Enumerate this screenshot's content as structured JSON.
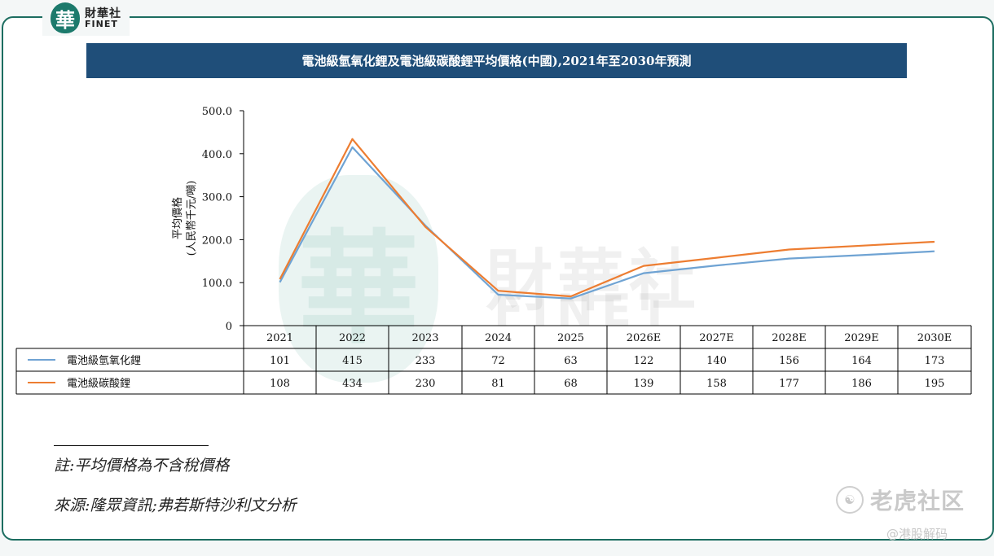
{
  "brand": {
    "seal_char": "華",
    "name_cn": "財華社",
    "name_en": "FINET"
  },
  "title": "電池級氫氧化鋰及電池級碳酸鋰平均價格(中國),2021年至2030年預測",
  "watermark": {
    "center_cn": "財華社",
    "center_en": "FINET",
    "seal_char": "華",
    "brand_right": "老虎社区",
    "handle": "@港股解码"
  },
  "notes": {
    "note": "註:平均價格為不含稅價格",
    "source": "來源:隆眾資訊;弗若斯特沙利文分析"
  },
  "colors": {
    "title_bg": "#1f4e79",
    "frame": "#1c6d60",
    "series_hydroxide": "#6fa3d3",
    "series_carbonate": "#ed7d31"
  },
  "chart_data": {
    "type": "line",
    "ylabel": "平均價格\n(人民幣千元/噸)",
    "ylim": [
      0,
      500
    ],
    "yticks": [
      "0",
      "100.0",
      "200.0",
      "300.0",
      "400.0",
      "500.0"
    ],
    "categories": [
      "2021",
      "2022",
      "2023",
      "2024",
      "2025",
      "2026E",
      "2027E",
      "2028E",
      "2029E",
      "2030E"
    ],
    "legend_position": "data-table",
    "series": [
      {
        "name": "電池級氫氧化鋰",
        "color": "#6fa3d3",
        "values": [
          101,
          415,
          233,
          72,
          63,
          122,
          140,
          156,
          164,
          173
        ]
      },
      {
        "name": "電池級碳酸鋰",
        "color": "#ed7d31",
        "values": [
          108,
          434,
          230,
          81,
          68,
          139,
          158,
          177,
          186,
          195
        ]
      }
    ]
  }
}
